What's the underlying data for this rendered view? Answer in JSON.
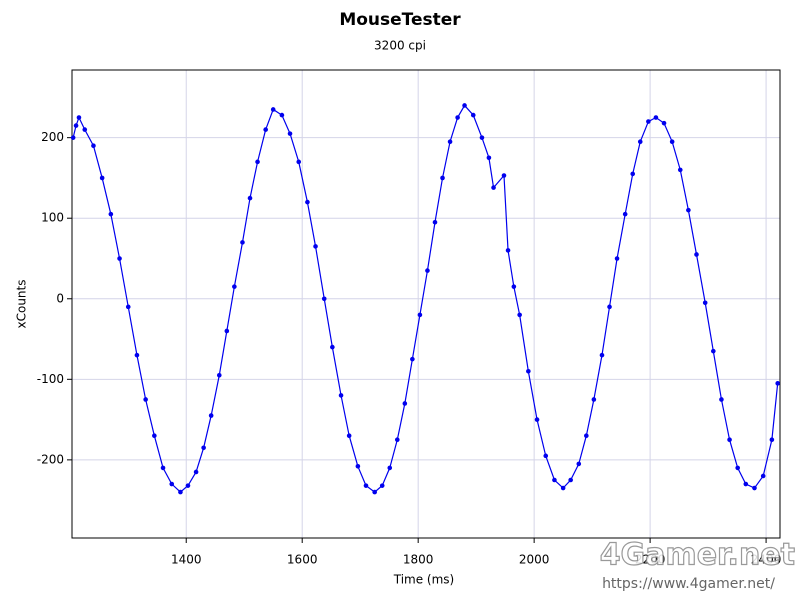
{
  "chart_data": {
    "type": "line",
    "title": "MouseTester",
    "subtitle": "3200 cpi",
    "x_label": "Time (ms)",
    "y_label": "xCounts",
    "watermark": "4Gamer.net",
    "watermark_url": "https://www.4gamer.net/",
    "xlim": [
      1203,
      2424
    ],
    "ylim": [
      -297,
      284
    ],
    "xticks": [
      1400,
      1600,
      1800,
      2000,
      2200,
      2400
    ],
    "yticks": [
      -200,
      -100,
      0,
      100,
      200
    ],
    "grid": true,
    "x": [
      1205,
      1210,
      1215,
      1225,
      1240,
      1255,
      1270,
      1285,
      1300,
      1315,
      1330,
      1345,
      1360,
      1375,
      1390,
      1403,
      1417,
      1430,
      1443,
      1457,
      1470,
      1483,
      1497,
      1510,
      1523,
      1537,
      1550,
      1565,
      1579,
      1594,
      1609,
      1623,
      1638,
      1652,
      1667,
      1681,
      1696,
      1710,
      1725,
      1738,
      1751,
      1764,
      1777,
      1790,
      1803,
      1816,
      1829,
      1842,
      1855,
      1868,
      1880,
      1895,
      1910,
      1922,
      1930,
      1948,
      1955,
      1965,
      1975,
      1990,
      2005,
      2020,
      2035,
      2050,
      2063,
      2077,
      2090,
      2103,
      2117,
      2130,
      2143,
      2157,
      2170,
      2183,
      2197,
      2210,
      2224,
      2238,
      2252,
      2266,
      2280,
      2295,
      2309,
      2323,
      2337,
      2351,
      2365,
      2380,
      2395,
      2410,
      2420
    ],
    "series": [
      {
        "name": "xCounts",
        "color": "#0000ee",
        "values": [
          200,
          215,
          225,
          210,
          190,
          150,
          105,
          50,
          -10,
          -70,
          -125,
          -170,
          -210,
          -230,
          -240,
          -232,
          -215,
          -185,
          -145,
          -95,
          -40,
          15,
          70,
          125,
          170,
          210,
          235,
          228,
          205,
          170,
          120,
          65,
          0,
          -60,
          -120,
          -170,
          -208,
          -232,
          -240,
          -232,
          -210,
          -175,
          -130,
          -75,
          -20,
          35,
          95,
          150,
          195,
          225,
          240,
          228,
          200,
          175,
          138,
          153,
          60,
          15,
          -20,
          -90,
          -150,
          -195,
          -225,
          -235,
          -225,
          -205,
          -170,
          -125,
          -70,
          -10,
          50,
          105,
          155,
          195,
          220,
          225,
          218,
          195,
          160,
          110,
          55,
          -5,
          -65,
          -125,
          -175,
          -210,
          -230,
          -235,
          -220,
          -175,
          -105
        ]
      }
    ]
  }
}
